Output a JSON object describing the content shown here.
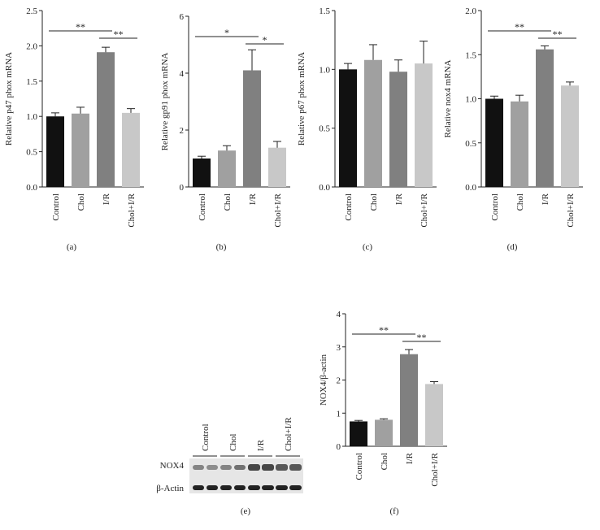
{
  "chart_data": [
    {
      "type": "bar",
      "label": "(a)",
      "ylabel": "Relative p47 phox mRNA",
      "categories": [
        "Control",
        "Chol",
        "I/R",
        "Chol+I/R"
      ],
      "values": [
        1.0,
        1.04,
        1.91,
        1.05
      ],
      "errors": [
        0.05,
        0.09,
        0.07,
        0.06
      ],
      "colors": [
        "#111111",
        "#a0a0a0",
        "#808080",
        "#c8c8c8"
      ],
      "ylim": [
        0,
        2.5
      ],
      "yticks": [
        {
          "value": 0,
          "label": "0.0"
        },
        {
          "value": 0.5,
          "label": "0.5"
        },
        {
          "value": 1,
          "label": "1.0"
        },
        {
          "value": 1.5,
          "label": "1.5"
        },
        {
          "value": 2,
          "label": "2.0"
        },
        {
          "value": 2.5,
          "label": "2.5"
        }
      ],
      "annotations": [
        "**",
        "**"
      ]
    },
    {
      "type": "bar",
      "label": "(b)",
      "ylabel": "Relative gp91 phox mRNA",
      "categories": [
        "Control",
        "Chol",
        "I/R",
        "Chol+I/R"
      ],
      "values": [
        1.0,
        1.28,
        4.1,
        1.38
      ],
      "errors": [
        0.08,
        0.17,
        0.72,
        0.22
      ],
      "colors": [
        "#111111",
        "#a0a0a0",
        "#808080",
        "#c8c8c8"
      ],
      "ylim": [
        0,
        6
      ],
      "yticks": [
        0,
        2,
        4,
        6
      ],
      "annotations": [
        "*",
        "*"
      ]
    },
    {
      "type": "bar",
      "label": "(c)",
      "ylabel": "Relative p67 phox mRNA",
      "categories": [
        "Control",
        "Chol",
        "I/R",
        "Chol+I/R"
      ],
      "values": [
        1.0,
        1.08,
        0.98,
        1.05
      ],
      "errors": [
        0.05,
        0.13,
        0.1,
        0.19
      ],
      "colors": [
        "#111111",
        "#a0a0a0",
        "#808080",
        "#c8c8c8"
      ],
      "ylim": [
        0,
        1.5
      ],
      "yticks": [
        {
          "value": 0,
          "label": "0.0"
        },
        {
          "value": 0.5,
          "label": "0.5"
        },
        {
          "value": 1,
          "label": "1.0"
        },
        {
          "value": 1.5,
          "label": "1.5"
        }
      ]
    },
    {
      "type": "bar",
      "label": "(d)",
      "ylabel": "Relative nox4 mRNA",
      "categories": [
        "Control",
        "Chol",
        "I/R",
        "Chol+I/R"
      ],
      "values": [
        1.0,
        0.97,
        1.56,
        1.15
      ],
      "errors": [
        0.03,
        0.07,
        0.04,
        0.04
      ],
      "colors": [
        "#111111",
        "#a0a0a0",
        "#808080",
        "#c8c8c8"
      ],
      "ylim": [
        0,
        2
      ],
      "yticks": [
        {
          "value": 0,
          "label": "0.0"
        },
        {
          "value": 0.5,
          "label": "0.5"
        },
        {
          "value": 1,
          "label": "1.0"
        },
        {
          "value": 1.5,
          "label": "1.5"
        },
        {
          "value": 2,
          "label": "2.0"
        }
      ],
      "annotations": [
        "**",
        "**"
      ]
    },
    {
      "type": "bar",
      "label": "(f)",
      "ylabel": "NOX4/β-actin",
      "categories": [
        "Control",
        "Chol",
        "I/R",
        "Chol+I/R"
      ],
      "values": [
        0.75,
        0.8,
        2.78,
        1.88
      ],
      "errors": [
        0.03,
        0.03,
        0.14,
        0.07
      ],
      "colors": [
        "#111111",
        "#a0a0a0",
        "#808080",
        "#c8c8c8"
      ],
      "ylim": [
        0,
        4
      ],
      "yticks": [
        0,
        1,
        2,
        3,
        4
      ],
      "annotations": [
        "**",
        "**"
      ]
    }
  ],
  "blot": {
    "label": "(e)",
    "lanes": [
      "Control",
      "Chol",
      "I/R",
      "Chol+I/R"
    ],
    "rows": [
      "NOX4",
      "β-Actin"
    ]
  }
}
